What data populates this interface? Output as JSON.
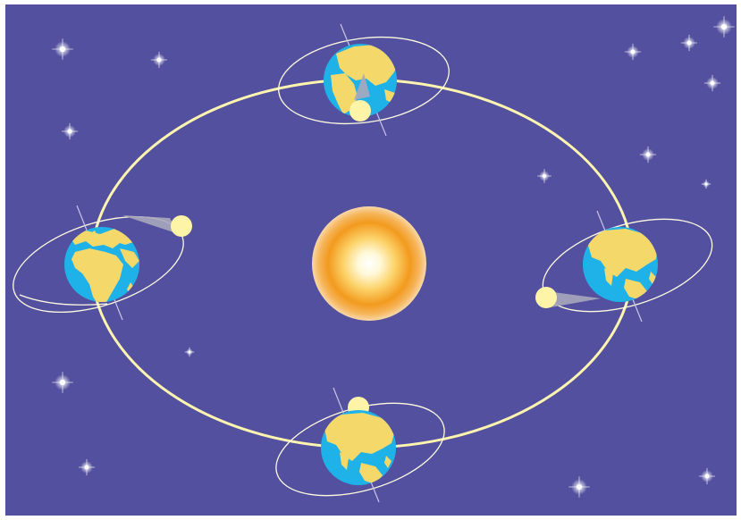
{
  "palette": {
    "sky": "#52509f",
    "frame": "#ffffff",
    "orbit": "#fdf4b0",
    "ocean": "#1fb2e8",
    "land": "#f5d86a",
    "moon": "#fdf4a8",
    "shadow": "#a9a7bd",
    "axis": "#c9c5e6",
    "moon_orbit": "#fffbe0",
    "sun_core": "#fffef0",
    "sun_mid": "#fcd36a",
    "sun_outer": "#f29a1e",
    "star": "#ffffff"
  },
  "icons": {
    "sun": "sun-icon",
    "earth": "earth-globe-icon",
    "moon": "moon-icon",
    "star": "star-sparkle-icon"
  }
}
